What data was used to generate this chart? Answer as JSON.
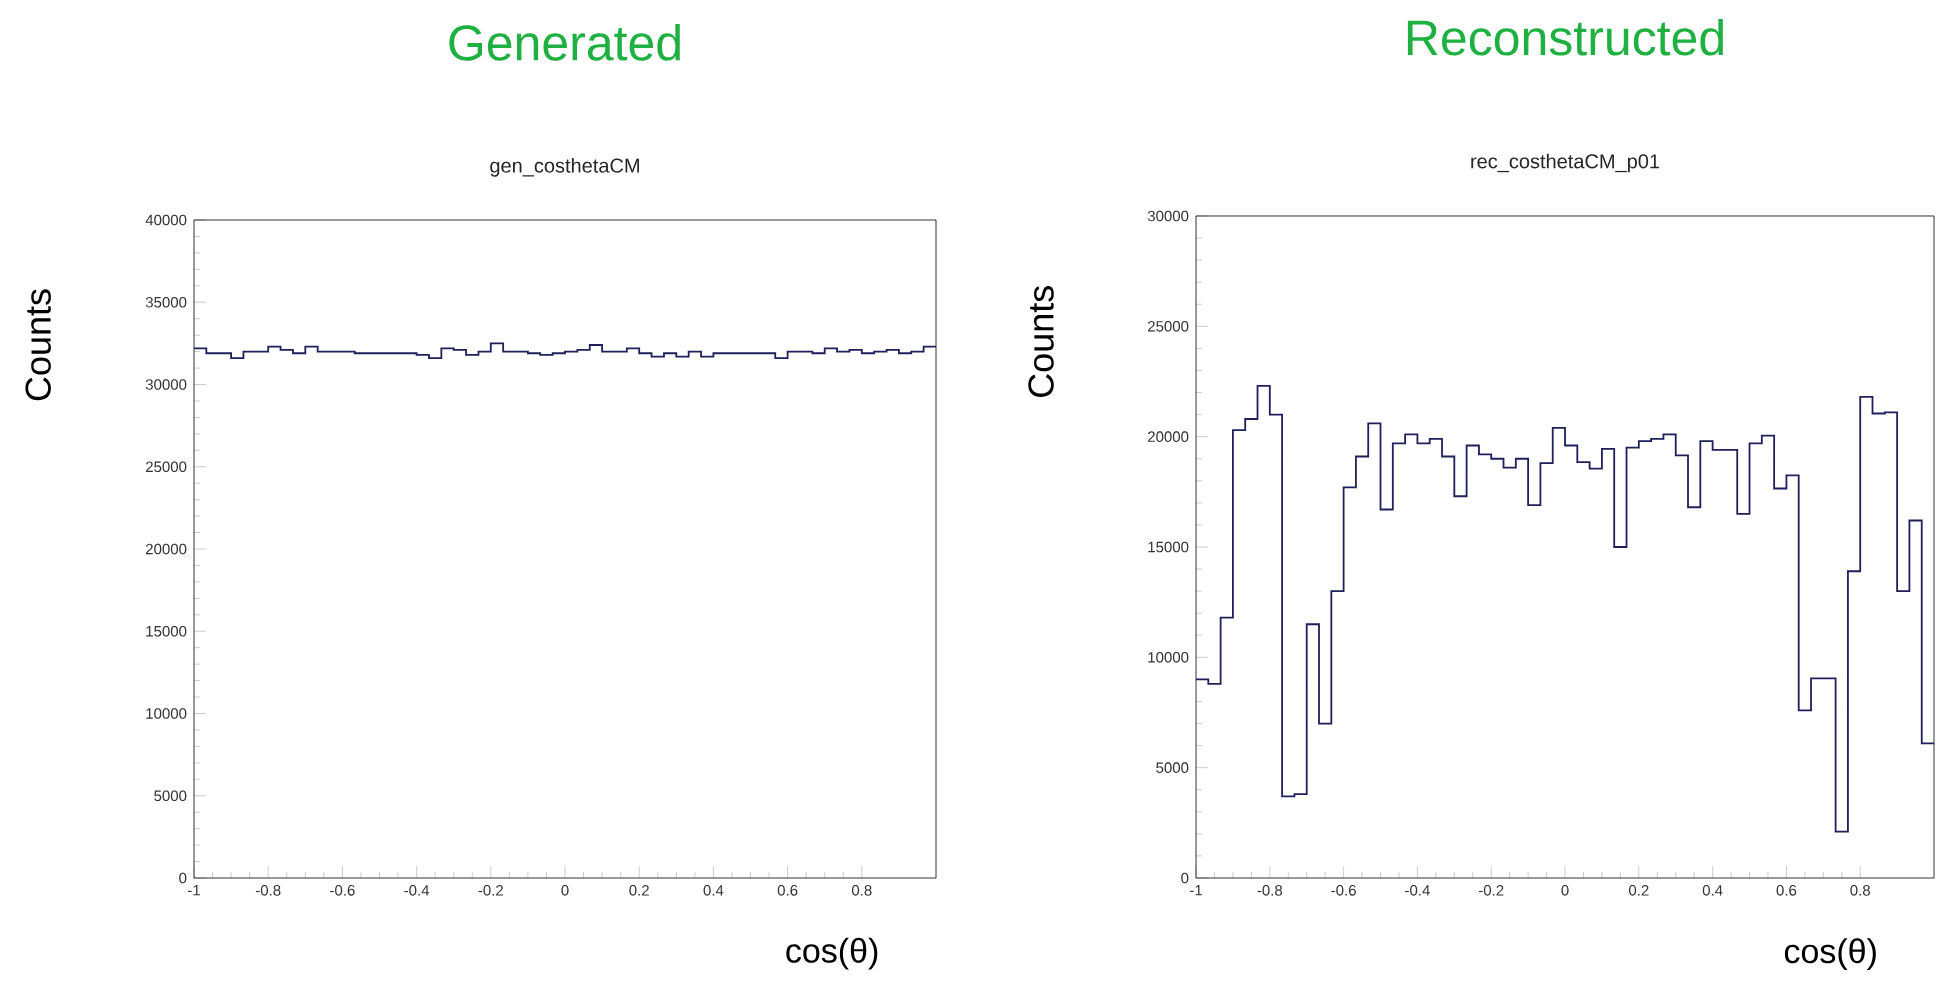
{
  "chart_data": [
    {
      "type": "histogram",
      "title": "Generated",
      "subtitle": "gen_costhetaCM",
      "xlabel": "cos(θ)",
      "ylabel": "Counts",
      "color": "#1f1f5c",
      "bins": [
        -1,
        -0.9667,
        -0.9333,
        -0.9,
        -0.8667,
        -0.8333,
        -0.8,
        -0.7667,
        -0.7333,
        -0.7,
        -0.6667,
        -0.6333,
        -0.6,
        -0.5667,
        -0.5333,
        -0.5,
        -0.4667,
        -0.4333,
        -0.4,
        -0.3667,
        -0.3333,
        -0.3,
        -0.2667,
        -0.2333,
        -0.2,
        -0.1667,
        -0.1333,
        -0.1,
        -0.0667,
        -0.0333,
        0,
        0.0333,
        0.0667,
        0.1,
        0.1333,
        0.1667,
        0.2,
        0.2333,
        0.2667,
        0.3,
        0.3333,
        0.3667,
        0.4,
        0.4333,
        0.4667,
        0.5,
        0.5333,
        0.5667,
        0.6,
        0.6333,
        0.6667,
        0.7,
        0.7333,
        0.7667,
        0.8,
        0.8333,
        0.8667,
        0.9,
        0.9333,
        0.9667,
        1
      ],
      "values": [
        32200,
        31900,
        31900,
        31600,
        32000,
        32000,
        32300,
        32100,
        31900,
        32300,
        32000,
        32000,
        32000,
        31900,
        31900,
        31900,
        31900,
        31900,
        31800,
        31600,
        32200,
        32100,
        31800,
        32000,
        32500,
        32000,
        32000,
        31900,
        31800,
        31900,
        32000,
        32100,
        32400,
        32000,
        32000,
        32200,
        31900,
        31700,
        31900,
        31700,
        32000,
        31700,
        31900,
        31900,
        31900,
        31900,
        31900,
        31600,
        32000,
        32000,
        31900,
        32200,
        32000,
        32100,
        31900,
        32000,
        32100,
        31900,
        32000,
        32300
      ],
      "xlim": [
        -1,
        1
      ],
      "ylim": [
        0,
        40000
      ],
      "xticks": [
        -1,
        -0.8,
        -0.6,
        -0.4,
        -0.2,
        0,
        0.2,
        0.4,
        0.6,
        0.8
      ],
      "yticks": [
        0,
        5000,
        10000,
        15000,
        20000,
        25000,
        30000,
        35000,
        40000
      ]
    },
    {
      "type": "histogram",
      "title": "Reconstructed",
      "subtitle": "rec_costhetaCM_p01",
      "xlabel": "cos(θ)",
      "ylabel": "Counts",
      "color": "#1f1f5c",
      "bins": [
        -1,
        -0.9667,
        -0.9333,
        -0.9,
        -0.8667,
        -0.8333,
        -0.8,
        -0.7667,
        -0.7333,
        -0.7,
        -0.6667,
        -0.6333,
        -0.6,
        -0.5667,
        -0.5333,
        -0.5,
        -0.4667,
        -0.4333,
        -0.4,
        -0.3667,
        -0.3333,
        -0.3,
        -0.2667,
        -0.2333,
        -0.2,
        -0.1667,
        -0.1333,
        -0.1,
        -0.0667,
        -0.0333,
        0,
        0.0333,
        0.0667,
        0.1,
        0.1333,
        0.1667,
        0.2,
        0.2333,
        0.2667,
        0.3,
        0.3333,
        0.3667,
        0.4,
        0.4333,
        0.4667,
        0.5,
        0.5333,
        0.5667,
        0.6,
        0.6333,
        0.6667,
        0.7,
        0.7333,
        0.7667,
        0.8,
        0.8333,
        0.8667,
        0.9,
        0.9333,
        0.9667,
        1
      ],
      "values": [
        9000,
        8800,
        11800,
        20300,
        20800,
        22300,
        21000,
        3700,
        3800,
        11500,
        7000,
        13000,
        17700,
        19100,
        20600,
        16700,
        19700,
        20100,
        19700,
        19900,
        19100,
        17300,
        19600,
        19200,
        19000,
        18600,
        19000,
        16900,
        18800,
        20400,
        19600,
        18850,
        18550,
        19450,
        15000,
        19500,
        19800,
        19900,
        20100,
        19150,
        16800,
        19800,
        19400,
        19400,
        16500,
        19700,
        20050,
        17650,
        18250,
        7600,
        9050,
        9050,
        2100,
        13900,
        21800,
        21050,
        21100,
        13000,
        16200,
        6100
      ],
      "xlim": [
        -1,
        1
      ],
      "ylim": [
        0,
        30000
      ],
      "xticks": [
        -1,
        -0.8,
        -0.6,
        -0.4,
        -0.2,
        0,
        0.2,
        0.4,
        0.6,
        0.8
      ],
      "yticks": [
        0,
        5000,
        10000,
        15000,
        20000,
        25000,
        30000
      ]
    }
  ]
}
